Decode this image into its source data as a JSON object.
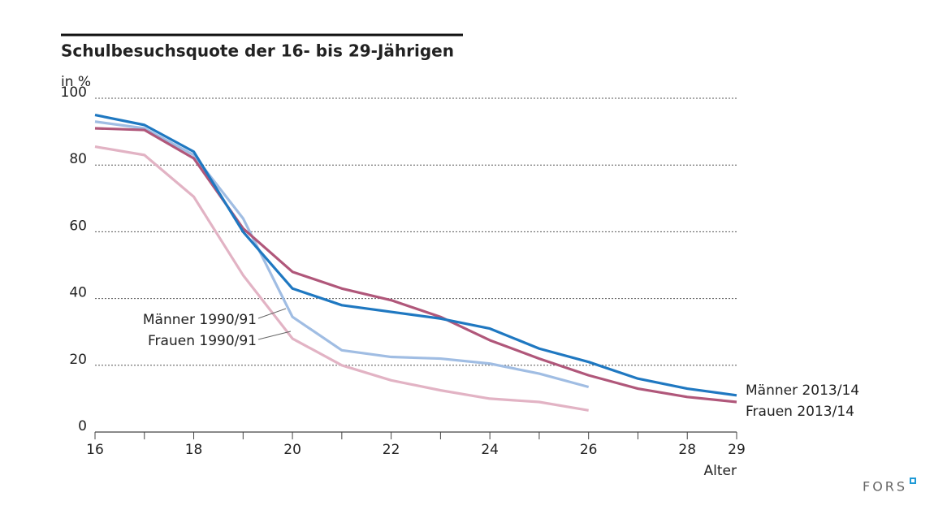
{
  "chart_data": {
    "type": "line",
    "title": "Schulbesuchsquote der 16- bis 29-Jährigen",
    "y_label": "in %",
    "x_label": "Alter",
    "source": "FORS",
    "x": [
      16,
      17,
      18,
      19,
      20,
      21,
      22,
      23,
      24,
      25,
      26,
      27,
      28,
      29
    ],
    "series": [
      {
        "name": "Männer 2013/14",
        "color": "#1f78c1",
        "values": [
          95,
          92,
          84,
          60,
          43,
          38,
          36,
          34,
          31,
          25,
          21,
          16,
          13,
          11
        ]
      },
      {
        "name": "Frauen 2013/14",
        "color": "#b0577a",
        "values": [
          91,
          90.5,
          82,
          61,
          48,
          43,
          39.5,
          34.5,
          27.5,
          22,
          17,
          13,
          10.5,
          9
        ]
      },
      {
        "name": "Männer 1990/91",
        "color": "#a0bde3",
        "values": [
          93,
          91,
          83,
          64,
          34.5,
          24.5,
          22.5,
          22,
          20.5,
          17.5,
          13.5,
          null,
          null,
          null
        ]
      },
      {
        "name": "Frauen 1990/91",
        "color": "#e2b3c4",
        "values": [
          85.5,
          83,
          70.5,
          47,
          28,
          20,
          15.5,
          12.5,
          10,
          9,
          6.5,
          null,
          null,
          null
        ]
      }
    ],
    "xlim": [
      16,
      29
    ],
    "ylim": [
      0,
      100
    ],
    "xticks": [
      16,
      18,
      20,
      22,
      24,
      26,
      28,
      29
    ],
    "xticks_minor": [
      17,
      19,
      21,
      23,
      25,
      27
    ],
    "yticks": [
      0,
      20,
      40,
      60,
      80,
      100
    ],
    "grid": true
  }
}
